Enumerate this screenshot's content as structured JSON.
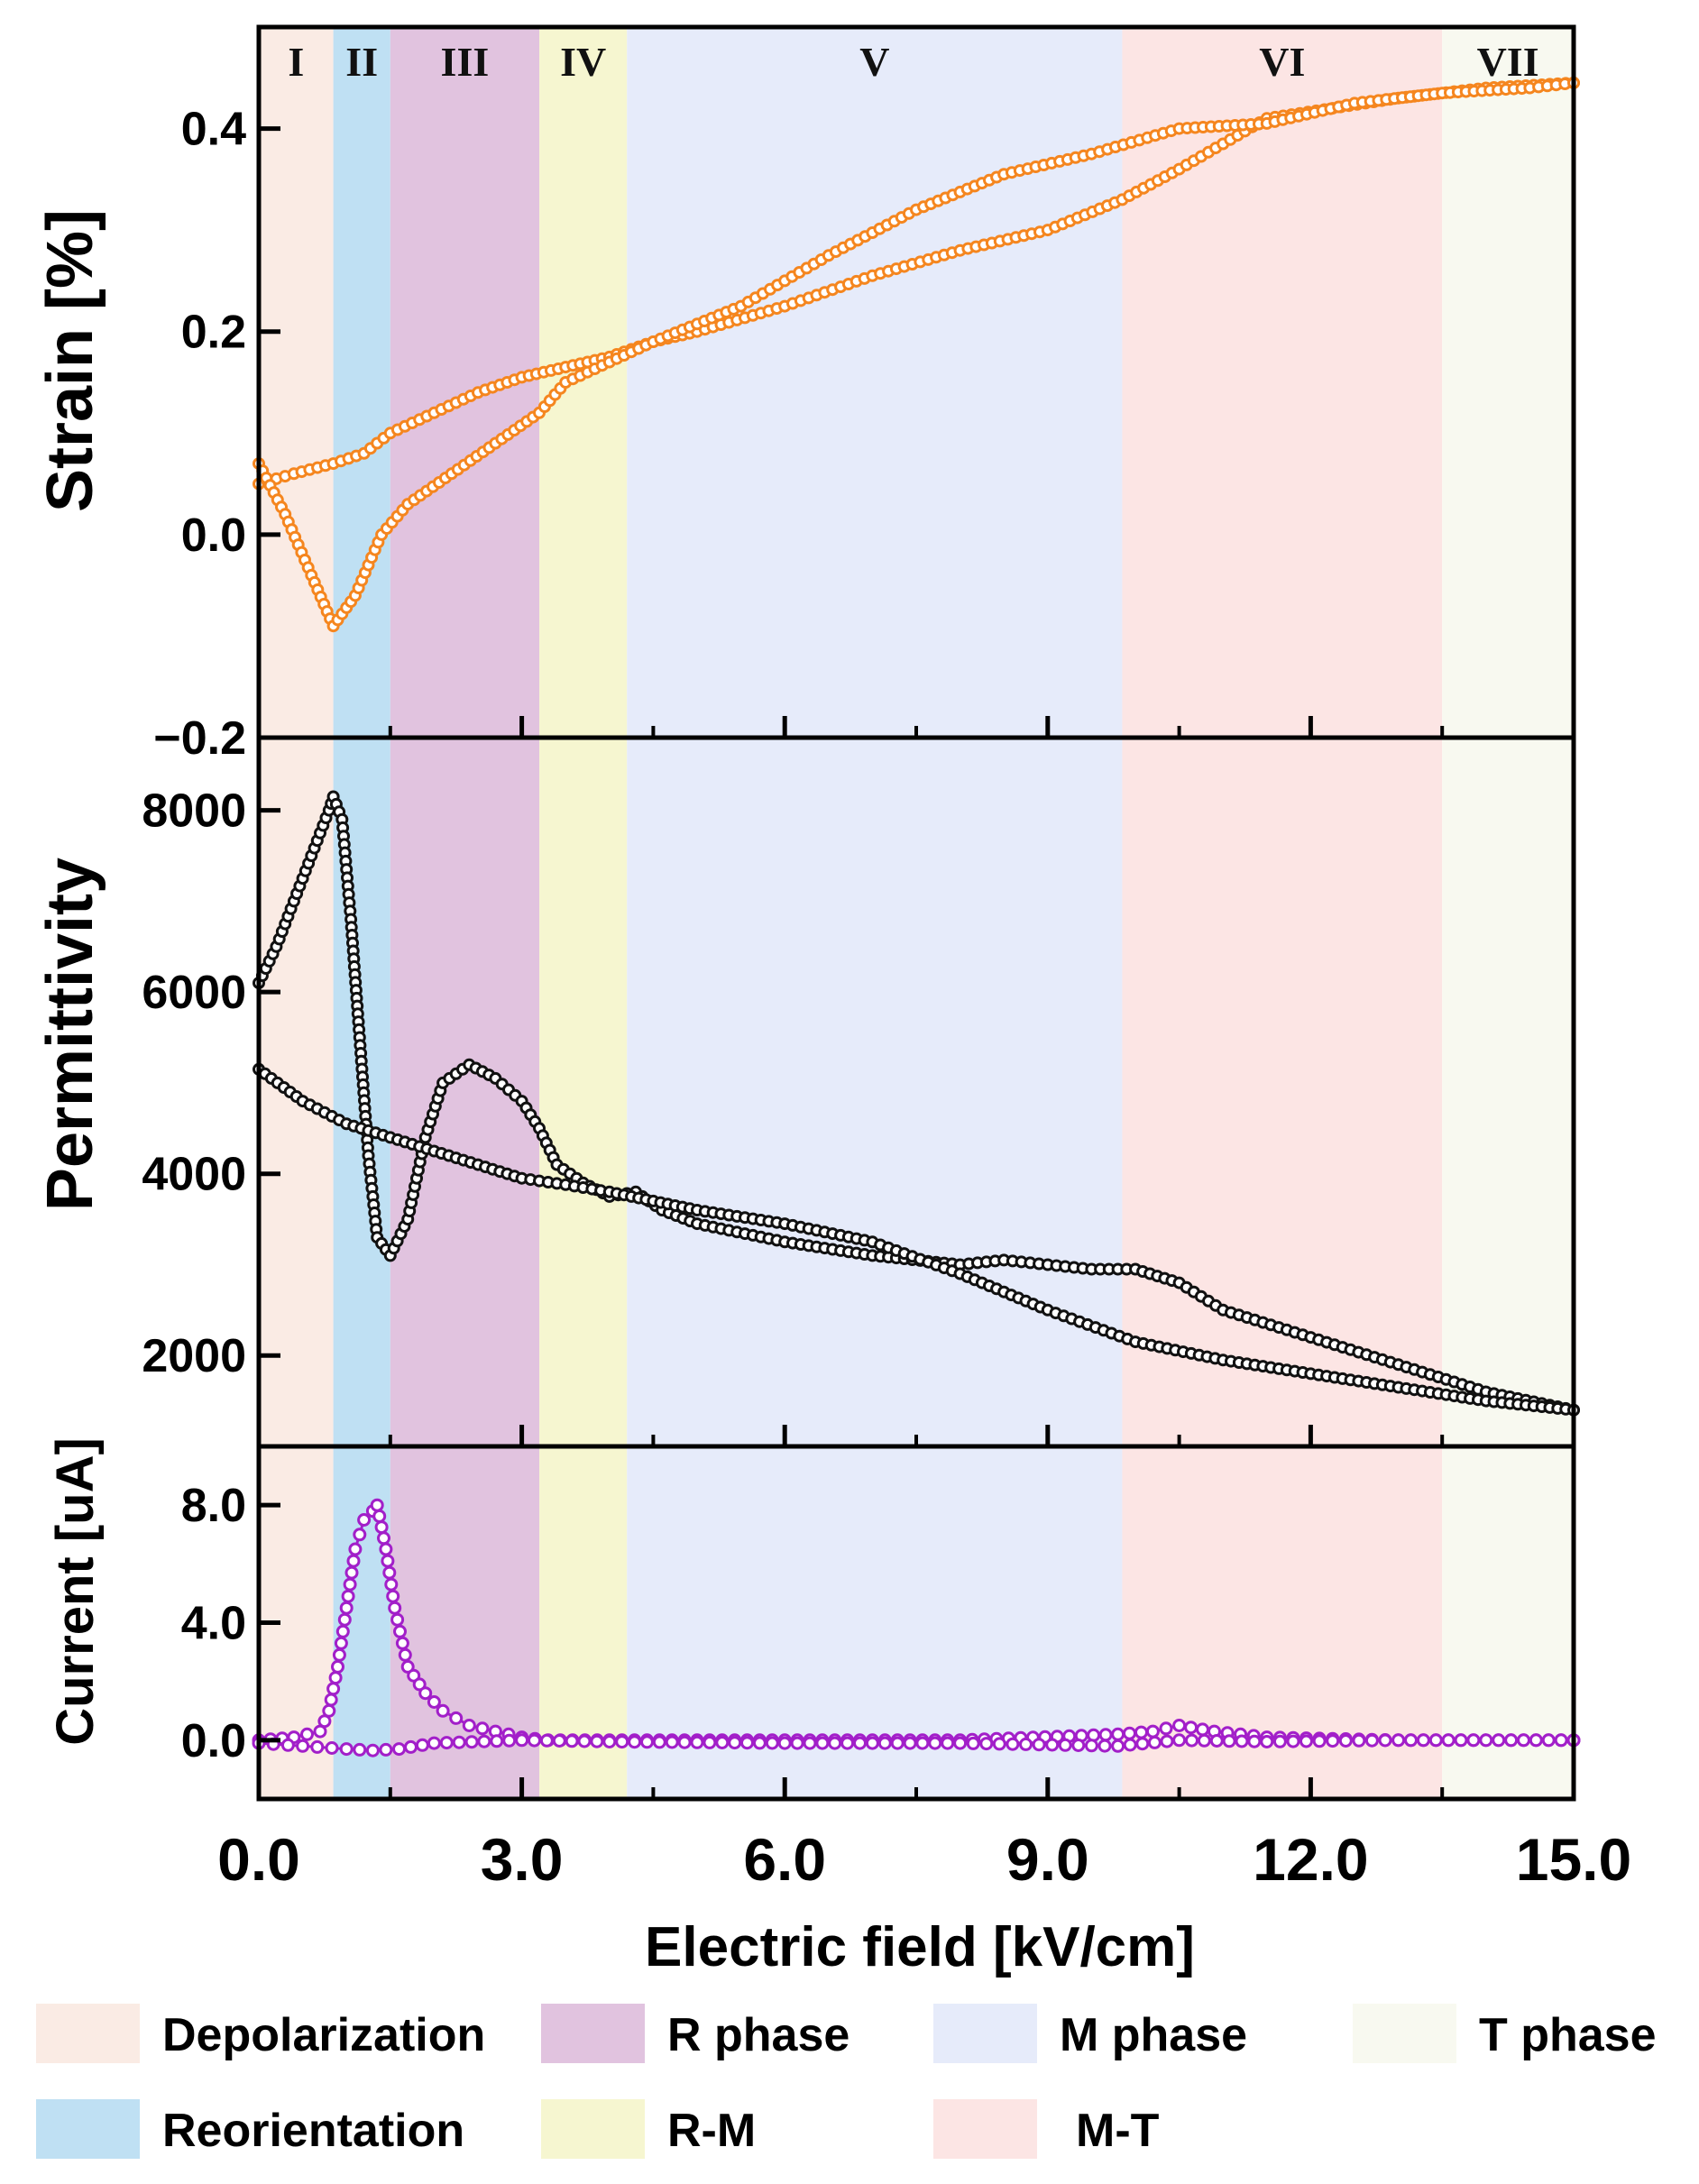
{
  "chart_data": {
    "type": "line",
    "x_axis": {
      "label": "Electric field [kV/cm]",
      "range": [
        0,
        15
      ],
      "ticks": [
        0,
        3,
        6,
        9,
        12,
        15
      ],
      "tick_labels": [
        "0.0",
        "3.0",
        "6.0",
        "9.0",
        "12.0",
        "15.0"
      ],
      "minor_ticks": [
        1.5,
        4.5,
        7.5,
        10.5,
        13.5
      ]
    },
    "regions": [
      {
        "label": "I",
        "range": [
          0.0,
          0.85
        ],
        "phase": "Depolarization",
        "color": "#faebe4"
      },
      {
        "label": "II",
        "range": [
          0.85,
          1.5
        ],
        "phase": "Reorientation",
        "color": "#bfe0f3"
      },
      {
        "label": "III",
        "range": [
          1.5,
          3.2
        ],
        "phase": "R phase",
        "color": "#e1c3df"
      },
      {
        "label": "IV",
        "range": [
          3.2,
          4.2
        ],
        "phase": "R-M",
        "color": "#f6f6d0"
      },
      {
        "label": "V",
        "range": [
          4.2,
          9.85
        ],
        "phase": "M phase",
        "color": "#e6ebfa"
      },
      {
        "label": "VI",
        "range": [
          9.85,
          13.5
        ],
        "phase": "M-T",
        "color": "#fce5e4"
      },
      {
        "label": "VII",
        "range": [
          13.5,
          15.0
        ],
        "phase": "T phase",
        "color": "#f8f9f0"
      }
    ],
    "panels": [
      {
        "name": "strain",
        "ylabel": "Strain [%]",
        "ylim": [
          -0.2,
          0.5
        ],
        "yticks": [
          -0.2,
          0.0,
          0.2,
          0.4
        ],
        "ytick_labels": [
          "−0.2",
          "0.0",
          "0.2",
          "0.4"
        ],
        "color": "#f5861f",
        "series": [
          {
            "name": "branch_1",
            "x": [
              0,
              0.4,
              0.85,
              1.2,
              1.5,
              2.0,
              2.5,
              3.0,
              3.5,
              4.0,
              4.5,
              5.0,
              6.0,
              7.0,
              8.0,
              9.0,
              9.85,
              10.5,
              11.5,
              13.0,
              14.0,
              15.0
            ],
            "y": [
              0.05,
              0.06,
              0.07,
              0.08,
              0.1,
              0.12,
              0.14,
              0.155,
              0.165,
              0.175,
              0.19,
              0.2,
              0.225,
              0.255,
              0.28,
              0.3,
              0.33,
              0.36,
              0.41,
              0.43,
              0.44,
              0.445
            ]
          },
          {
            "name": "branch_2",
            "x": [
              0,
              0.3,
              0.6,
              0.85,
              1.1,
              1.4,
              1.7,
              2.2,
              2.7,
              3.2,
              3.5,
              4.0,
              4.5,
              5.5,
              6.5,
              7.5,
              8.5,
              9.5,
              10.5,
              11.5,
              12.5,
              13.5,
              14.5,
              15.0
            ],
            "y": [
              0.07,
              0.02,
              -0.04,
              -0.09,
              -0.06,
              0.0,
              0.03,
              0.06,
              0.09,
              0.12,
              0.15,
              0.17,
              0.19,
              0.225,
              0.275,
              0.32,
              0.355,
              0.375,
              0.4,
              0.405,
              0.425,
              0.435,
              0.44,
              0.445
            ]
          }
        ]
      },
      {
        "name": "permittivity",
        "ylabel": "Permittivity",
        "ylim": [
          1000,
          8800
        ],
        "yticks": [
          2000,
          4000,
          6000,
          8000
        ],
        "ytick_labels": [
          "2000",
          "4000",
          "6000",
          "8000"
        ],
        "color": "#111111",
        "series": [
          {
            "name": "branch_1",
            "x": [
              0,
              0.2,
              0.4,
              0.6,
              0.8,
              0.85,
              0.95,
              1.05,
              1.15,
              1.25,
              1.35,
              1.5,
              1.7,
              1.9,
              2.1,
              2.4,
              2.7,
              3.0,
              3.2,
              3.4,
              3.7,
              4.0,
              4.3,
              4.6,
              5.0,
              6.0,
              7.0,
              8.0,
              8.5,
              9.0,
              9.5,
              10.0,
              10.5,
              11.0,
              12.0,
              13.0,
              14.0,
              15.0
            ],
            "y": [
              6100,
              6500,
              7000,
              7500,
              8000,
              8150,
              7900,
              6800,
              5500,
              4200,
              3300,
              3100,
              3500,
              4400,
              5000,
              5200,
              5050,
              4800,
              4500,
              4100,
              3900,
              3750,
              3800,
              3600,
              3450,
              3250,
              3100,
              3000,
              3050,
              3000,
              2950,
              2950,
              2800,
              2500,
              2200,
              1900,
              1600,
              1400
            ]
          },
          {
            "name": "branch_2",
            "x": [
              0,
              0.5,
              1.0,
              1.5,
              2.0,
              2.5,
              3.0,
              3.5,
              4.0,
              4.5,
              5.0,
              6.0,
              7.0,
              8.0,
              9.0,
              10.0,
              11.0,
              12.0,
              13.0,
              14.0,
              15.0
            ],
            "y": [
              5150,
              4800,
              4550,
              4400,
              4250,
              4100,
              3950,
              3880,
              3800,
              3700,
              3600,
              3450,
              3250,
              2900,
              2500,
              2150,
              1950,
              1800,
              1650,
              1500,
              1400
            ]
          }
        ]
      },
      {
        "name": "current",
        "ylabel": "Current [uA]",
        "ylim": [
          -2.0,
          10.0
        ],
        "yticks": [
          0.0,
          4.0,
          8.0
        ],
        "ytick_labels": [
          "0.0",
          "4.0",
          "8.0"
        ],
        "color": "#a21fc9",
        "series": [
          {
            "name": "branch_1",
            "x": [
              0,
              0.4,
              0.7,
              0.8,
              0.9,
              1.0,
              1.1,
              1.2,
              1.3,
              1.35,
              1.45,
              1.55,
              1.7,
              1.9,
              2.1,
              2.4,
              2.7,
              3.0,
              3.3,
              4.0,
              6.0,
              8.0,
              9.8,
              10.2,
              10.5,
              10.9,
              11.5,
              13.0,
              15.0
            ],
            "y": [
              0.0,
              0.1,
              0.3,
              1.0,
              2.5,
              4.5,
              6.5,
              7.5,
              7.8,
              8.0,
              6.5,
              4.5,
              2.5,
              1.6,
              1.0,
              0.5,
              0.3,
              0.1,
              0.0,
              0.0,
              0.0,
              0.0,
              0.2,
              0.3,
              0.5,
              0.3,
              0.1,
              0.0,
              0.0
            ]
          },
          {
            "name": "branch_2",
            "x": [
              0,
              0.5,
              1.0,
              1.3,
              1.6,
              2.0,
              3.0,
              4.0,
              6.0,
              8.0,
              9.8,
              10.5,
              11.5,
              13.0,
              15.0
            ],
            "y": [
              -0.1,
              -0.2,
              -0.3,
              -0.35,
              -0.3,
              -0.1,
              0.0,
              -0.05,
              -0.1,
              -0.1,
              -0.2,
              0.0,
              -0.05,
              0.0,
              0.0
            ]
          }
        ]
      }
    ],
    "legend": [
      {
        "label": "Depolarization",
        "color": "#faebe4"
      },
      {
        "label": "R phase",
        "color": "#e1c3df"
      },
      {
        "label": "M phase",
        "color": "#e6ebfa"
      },
      {
        "label": "T phase",
        "color": "#f8f9f0"
      },
      {
        "label": "Reorientation",
        "color": "#bfe0f3"
      },
      {
        "label": "R-M",
        "color": "#f6f6d0"
      },
      {
        "label": "M-T",
        "color": "#fce5e4"
      }
    ]
  }
}
